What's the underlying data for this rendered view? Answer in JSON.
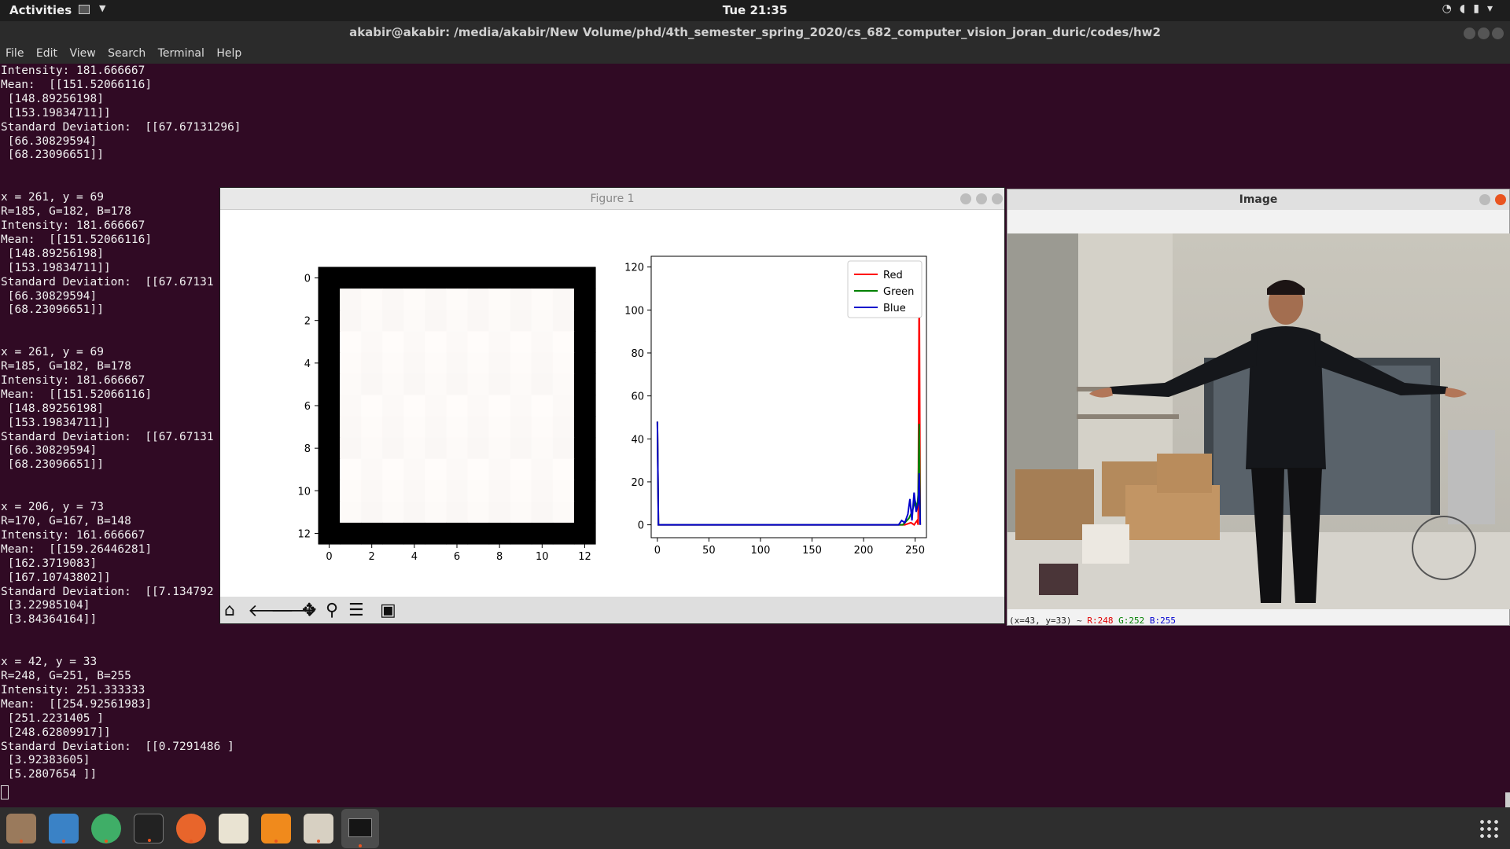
{
  "topbar": {
    "activities": "Activities",
    "clock": "Tue 21:35"
  },
  "terminal": {
    "title": "akabir@akabir: /media/akabir/New Volume/phd/4th_semester_spring_2020/cs_682_computer_vision_joran_duric/codes/hw2",
    "menu": [
      "File",
      "Edit",
      "View",
      "Search",
      "Terminal",
      "Help"
    ],
    "lines": [
      "Intensity: 181.666667",
      "Mean:  [[151.52066116]",
      " [148.89256198]",
      " [153.19834711]]",
      "Standard Deviation:  [[67.67131296]",
      " [66.30829594]",
      " [68.23096651]]",
      "",
      "",
      "x = 261, y = 69",
      "R=185, G=182, B=178",
      "Intensity: 181.666667",
      "Mean:  [[151.52066116]",
      " [148.89256198]",
      " [153.19834711]]",
      "Standard Deviation:  [[67.67131",
      " [66.30829594]",
      " [68.23096651]]",
      "",
      "",
      "x = 261, y = 69",
      "R=185, G=182, B=178",
      "Intensity: 181.666667",
      "Mean:  [[151.52066116]",
      " [148.89256198]",
      " [153.19834711]]",
      "Standard Deviation:  [[67.67131",
      " [66.30829594]",
      " [68.23096651]]",
      "",
      "",
      "x = 206, y = 73",
      "R=170, G=167, B=148",
      "Intensity: 161.666667",
      "Mean:  [[159.26446281]",
      " [162.3719083]",
      " [167.10743802]]",
      "Standard Deviation:  [[7.134792",
      " [3.22985104]",
      " [3.84364164]]",
      "",
      "",
      "x = 42, y = 33",
      "R=248, G=251, B=255",
      "Intensity: 251.333333",
      "Mean:  [[254.92561983]",
      " [251.2231405 ]",
      " [248.62809917]]",
      "Standard Deviation:  [[0.7291486 ]",
      " [3.92383605]",
      " [5.2807654 ]]"
    ]
  },
  "figure": {
    "title": "Figure 1",
    "toolbar_icons": [
      "home-icon",
      "back-arrow-icon",
      "forward-arrow-icon",
      "pan-icon",
      "zoom-icon",
      "subplots-icon",
      "save-icon"
    ]
  },
  "image_window": {
    "title": "Image",
    "status_prefix": "(x=43, y=33) ~",
    "status_r": "R:248",
    "status_g": "G:252",
    "status_b": "B:255",
    "colors": {
      "r": "#e00000",
      "g": "#008000",
      "b": "#0000d0"
    }
  },
  "chart_data": [
    {
      "type": "heatmap",
      "xticks": [
        "0",
        "2",
        "4",
        "6",
        "8",
        "10",
        "12"
      ],
      "yticks": [
        "0",
        "2",
        "4",
        "6",
        "8",
        "10",
        "12"
      ],
      "xlim": [
        -0.5,
        12.5
      ],
      "ylim": [
        12.5,
        -0.5
      ],
      "description_values": "13x13 patch: 1-pixel black border, interior near-white"
    },
    {
      "type": "line",
      "x_range": [
        0,
        255
      ],
      "xticks": [
        0,
        50,
        100,
        150,
        200,
        250
      ],
      "yticks": [
        0,
        20,
        40,
        60,
        80,
        100,
        120
      ],
      "ylim": [
        0,
        125
      ],
      "legend_position": "top-right",
      "series": [
        {
          "name": "Red",
          "color": "#ff0000",
          "points": [
            [
              0,
              48
            ],
            [
              1,
              0
            ],
            [
              240,
              0
            ],
            [
              246,
              1
            ],
            [
              249,
              0
            ],
            [
              252,
              2
            ],
            [
              253,
              0
            ],
            [
              254,
              117
            ],
            [
              255,
              0
            ]
          ]
        },
        {
          "name": "Green",
          "color": "#008000",
          "points": [
            [
              0,
              48
            ],
            [
              1,
              0
            ],
            [
              238,
              0
            ],
            [
              244,
              3
            ],
            [
              247,
              6
            ],
            [
              250,
              11
            ],
            [
              252,
              8
            ],
            [
              253,
              14
            ],
            [
              254,
              47
            ],
            [
              255,
              0
            ]
          ]
        },
        {
          "name": "Blue",
          "color": "#0000cc",
          "points": [
            [
              0,
              48
            ],
            [
              1,
              0
            ],
            [
              234,
              0
            ],
            [
              237,
              2
            ],
            [
              240,
              1
            ],
            [
              243,
              5
            ],
            [
              245,
              12
            ],
            [
              247,
              2
            ],
            [
              249,
              15
            ],
            [
              251,
              6
            ],
            [
              253,
              10
            ],
            [
              254,
              24
            ],
            [
              255,
              0
            ]
          ]
        }
      ]
    }
  ]
}
